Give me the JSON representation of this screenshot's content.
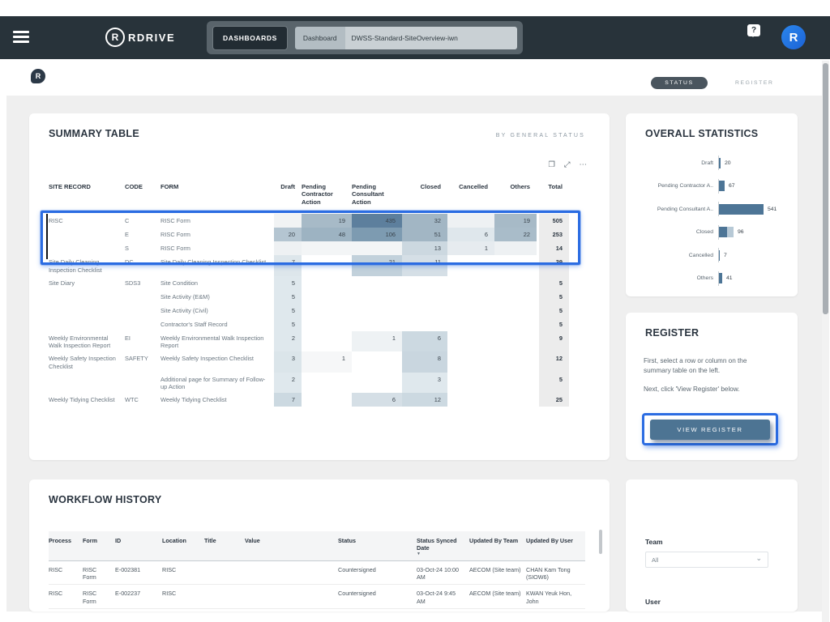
{
  "icons": {
    "brand_mark": "R",
    "mini_logo": "R",
    "help": "?",
    "avatar_letter": "R",
    "copy": "❐",
    "focus": "⤢",
    "more": "⋯",
    "chevron_down": "⌄",
    "sort_desc": "▼"
  },
  "colors": {
    "accent_selection": "#2b6ce2",
    "topbar": "#28333a",
    "bar": "#4d7596",
    "bar_light": "#b7c9d6",
    "status_pill": "#4a555e"
  },
  "topbar": {
    "brand": "RDRIVE",
    "nav_button": "DASHBOARDS",
    "breadcrumb_type": "Dashboard",
    "breadcrumb_name": "DWSS-Standard-SiteOverview-iwn"
  },
  "view_toggle": {
    "status": "STATUS",
    "register": "REGISTER"
  },
  "summary": {
    "title": "SUMMARY TABLE",
    "subtitle": "BY GENERAL STATUS",
    "columns": [
      "SITE RECORD",
      "CODE",
      "FORM",
      "Draft",
      "Pending Contractor Action",
      "Pending Consultant Action",
      "Closed",
      "Cancelled",
      "Others",
      "Total"
    ],
    "rows": [
      {
        "site": "RISC",
        "code": "C",
        "form": "RISC Form",
        "vals": [
          "",
          "19",
          "435",
          "32",
          "",
          "19",
          "505"
        ],
        "bgs": [
          "#f1f3f4",
          "#a7bac7",
          "#5d7f9d",
          "#a2b6c4",
          "#eef1f3",
          "#a7bac7",
          "#ececec"
        ]
      },
      {
        "site": "",
        "code": "E",
        "form": "RISC Form",
        "vals": [
          "20",
          "48",
          "106",
          "51",
          "6",
          "22",
          "253"
        ],
        "bgs": [
          "#b4c5d1",
          "#9db3c2",
          "#7d9bb1",
          "#a2b6c4",
          "#dfe7ec",
          "#a9bcc9",
          "#ececec"
        ]
      },
      {
        "site": "",
        "code": "S",
        "form": "RISC Form",
        "vals": [
          "",
          "",
          "",
          "13",
          "1",
          "",
          "14"
        ],
        "bgs": [
          "#eef1f3",
          "#f3f5f6",
          "#f3f5f6",
          "#ccd8e0",
          "#e6ebef",
          "#eef1f3",
          "#ececec"
        ]
      },
      {
        "site": "Site Daily Cleaning Inspection Checklist",
        "code": "DC",
        "form": "Site Daily Cleaning Inspection Checklist",
        "vals": [
          "7",
          "",
          "21",
          "11",
          "",
          "",
          "39"
        ],
        "bgs": [
          "#dde6eb",
          "",
          "#c2d1db",
          "#d5dfe6",
          "",
          "",
          "#ececec"
        ]
      },
      {
        "site": "Site Diary",
        "code": "SDS3",
        "form": "Site Condition",
        "vals": [
          "5",
          "",
          "",
          "",
          "",
          "",
          "5"
        ],
        "bgs": [
          "#dfe8ed",
          "",
          "",
          "",
          "",
          "",
          "#ececec"
        ]
      },
      {
        "site": "",
        "code": "",
        "form": "Site Activity (E&M)",
        "vals": [
          "5",
          "",
          "",
          "",
          "",
          "",
          "5"
        ],
        "bgs": [
          "#dfe8ed",
          "",
          "",
          "",
          "",
          "",
          "#ececec"
        ]
      },
      {
        "site": "",
        "code": "",
        "form": "Site Activity (Civil)",
        "vals": [
          "5",
          "",
          "",
          "",
          "",
          "",
          "5"
        ],
        "bgs": [
          "#dfe8ed",
          "",
          "",
          "",
          "",
          "",
          "#ececec"
        ]
      },
      {
        "site": "",
        "code": "",
        "form": "Contractor's Staff Record",
        "vals": [
          "5",
          "",
          "",
          "",
          "",
          "",
          "5"
        ],
        "bgs": [
          "#dfe8ed",
          "",
          "",
          "",
          "",
          "",
          "#ececec"
        ]
      },
      {
        "site": "Weekly Environmental Walk Inspection Report",
        "code": "EI",
        "form": "Weekly Environmental Walk Inspection Report",
        "vals": [
          "2",
          "",
          "1",
          "6",
          "",
          "",
          "9"
        ],
        "bgs": [
          "#dfe8ed",
          "",
          "#eef2f4",
          "#ccd9e1",
          "",
          "",
          "#ececec"
        ]
      },
      {
        "site": "Weekly Safety Inspection Checklist",
        "code": "SAFETY",
        "form": "Weekly Safety Inspection Checklist",
        "vals": [
          "3",
          "1",
          "",
          "8",
          "",
          "",
          "12"
        ],
        "bgs": [
          "#dbe5ea",
          "#f6f7f8",
          "",
          "#c9d6df",
          "",
          "",
          "#ececec"
        ]
      },
      {
        "site": "",
        "code": "",
        "form": "Additional page for Summary of Follow-up Action",
        "vals": [
          "2",
          "",
          "",
          "3",
          "",
          "",
          "5"
        ],
        "bgs": [
          "#dfe8ed",
          "",
          "",
          "#dfe8ed",
          "",
          "",
          "#ececec"
        ]
      },
      {
        "site": "Weekly Tidying Checklist",
        "code": "WTC",
        "form": "Weekly Tidying Checklist",
        "vals": [
          "7",
          "",
          "6",
          "12",
          "",
          "",
          "25"
        ],
        "bgs": [
          "#ccd9e1",
          "",
          "#d5dfe6",
          "#ccd9e1",
          "",
          "",
          "#ececec"
        ]
      }
    ]
  },
  "statistics": {
    "title": "OVERALL STATISTICS",
    "chart_data": {
      "type": "bar",
      "orientation": "horizontal",
      "categories": [
        "Draft",
        "Pending Contractor A..",
        "Pending Consultant A..",
        "Closed",
        "Cancelled",
        "Others"
      ],
      "values": [
        20,
        67,
        541,
        96,
        7,
        41
      ],
      "xlim": [
        0,
        541
      ],
      "bar_color": "#4d7596",
      "closed_has_light_tail": true,
      "legend": "off",
      "grid": "off"
    }
  },
  "register": {
    "title": "REGISTER",
    "instruction1": "First, select a row or column on the summary table on the left.",
    "instruction2": "Next, click 'View Register' below.",
    "button_label": "VIEW REGISTER"
  },
  "workflow": {
    "title": "WORKFLOW HISTORY",
    "columns": [
      "Process",
      "Form",
      "ID",
      "Location",
      "Title",
      "Value",
      "Status",
      "Status Synced Date",
      "Updated By Team",
      "Updated By User"
    ],
    "sorted_column": "Status Synced Date",
    "rows": [
      {
        "process": "RISC",
        "form": "RISC Form",
        "id": "E-002381",
        "location": "RISC",
        "title": "",
        "value": "",
        "status": "Countersigned",
        "synced": "03-Oct-24 10:00 AM",
        "team": "AECOM (Site team)",
        "user": "CHAN Kam Tong (SIOW6)"
      },
      {
        "process": "RISC",
        "form": "RISC Form",
        "id": "E-002237",
        "location": "RISC",
        "title": "",
        "value": "",
        "status": "Countersigned",
        "synced": "03-Oct-24 9:45 AM",
        "team": "AECOM (Site team)",
        "user": "KWAN Yeuk Hon, John"
      }
    ]
  },
  "filters": {
    "team_label": "Team",
    "team_value": "All",
    "user_label": "User"
  }
}
